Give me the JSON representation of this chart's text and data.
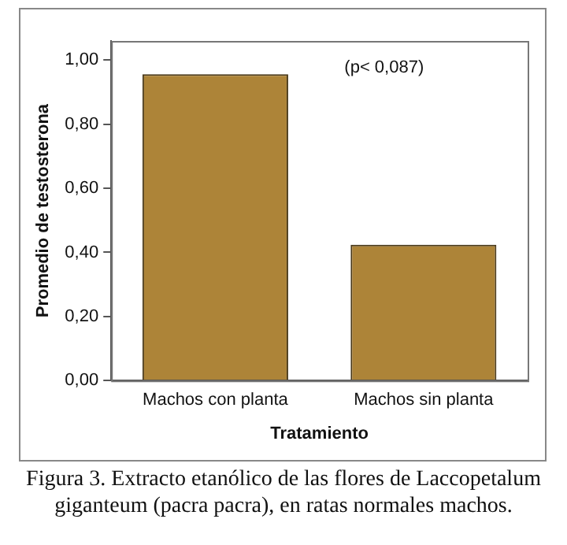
{
  "chart_data": {
    "type": "bar",
    "xlabel": "Tratamiento",
    "ylabel": "Promedio de testosterona",
    "categories": [
      "Machos con planta",
      "Machos sin planta"
    ],
    "values": [
      0.956,
      0.424
    ],
    "color": "#ad8438",
    "ylim": [
      0,
      1.06
    ],
    "yticks": [
      {
        "value": 0,
        "label": "0,00"
      },
      {
        "value": 0.2,
        "label": "0,20"
      },
      {
        "value": 0.4,
        "label": "0,40"
      },
      {
        "value": 0.6,
        "label": "0,60"
      },
      {
        "value": 0.8,
        "label": "0,80"
      },
      {
        "value": 1,
        "label": "1,00"
      }
    ],
    "grid": false,
    "legend": false,
    "annotations": [
      "(p< 0,087)",
      "Figura 3. Extracto etanólico de las flores de Laccopetalum giganteum (pacra pacra), en ratas normales machos."
    ]
  }
}
